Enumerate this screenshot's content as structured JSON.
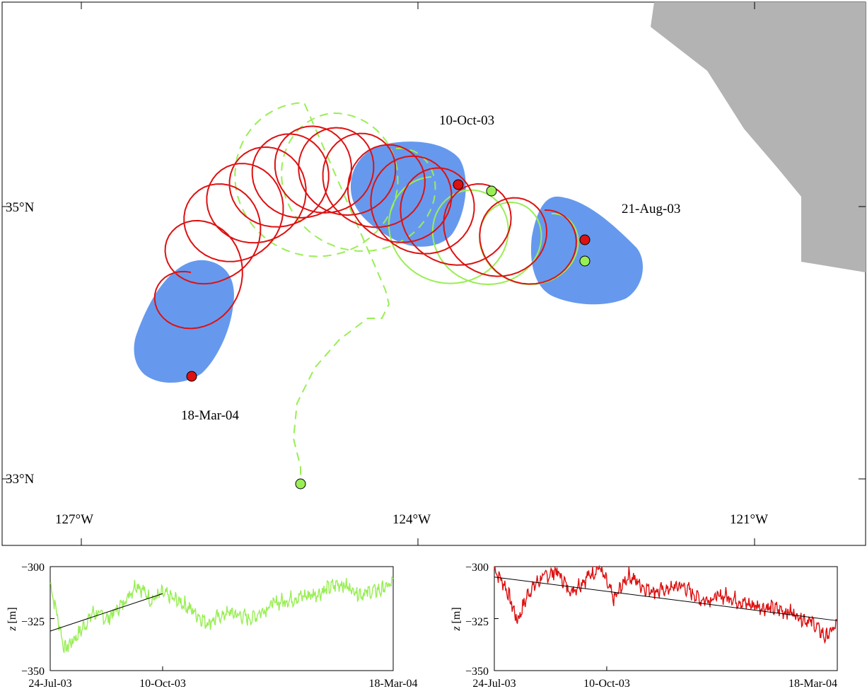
{
  "map": {
    "lat_labels": [
      "35°N",
      "33°N"
    ],
    "lon_labels": [
      "127°W",
      "124°W",
      "121°W"
    ],
    "date_labels": [
      "10-Oct-03",
      "21-Aug-03",
      "18-Mar-04"
    ],
    "land_color": "#b3b3b3",
    "eddy_color": "#6699ee",
    "red_track_color": "#dd1111",
    "green_track_color": "#99ee55"
  },
  "chart_data": [
    {
      "type": "line",
      "title": "",
      "xlabel": "",
      "ylabel": "z [m]",
      "ylabel_var": "z",
      "ylabel_unit": "[m]",
      "ylim": [
        -350,
        -300
      ],
      "yticks": [
        "−300",
        "−325",
        "−350"
      ],
      "xticks": [
        "24-Jul-03",
        "10-Oct-03",
        "18-Mar-04"
      ],
      "series": [
        {
          "color": "#99ee55",
          "x": [
            "24-Jul-03",
            "03-Aug-03",
            "13-Aug-03",
            "23-Aug-03",
            "02-Sep-03",
            "12-Sep-03",
            "22-Sep-03",
            "02-Oct-03",
            "10-Oct-03",
            "25-Oct-03",
            "10-Nov-03",
            "25-Nov-03",
            "10-Dec-03",
            "25-Dec-03",
            "10-Jan-04",
            "25-Jan-04",
            "10-Feb-04",
            "25-Feb-04",
            "10-Mar-04",
            "18-Mar-04"
          ],
          "values": [
            -308,
            -340,
            -332,
            -322,
            -325,
            -318,
            -308,
            -316,
            -313,
            -318,
            -327,
            -322,
            -325,
            -318,
            -315,
            -313,
            -308,
            -313,
            -311,
            -308
          ]
        }
      ],
      "trend": {
        "x": [
          "24-Jul-03",
          "10-Oct-03"
        ],
        "values": [
          -331,
          -313
        ]
      }
    },
    {
      "type": "line",
      "title": "",
      "xlabel": "",
      "ylabel": "z [m]",
      "ylabel_var": "z",
      "ylabel_unit": "[m]",
      "ylim": [
        -350,
        -300
      ],
      "yticks": [
        "−300",
        "−325",
        "−350"
      ],
      "xticks": [
        "24-Jul-03",
        "10-Oct-03",
        "18-Mar-04"
      ],
      "series": [
        {
          "color": "#dd1111",
          "x": [
            "24-Jul-03",
            "01-Aug-03",
            "09-Aug-03",
            "17-Aug-03",
            "25-Aug-03",
            "05-Sep-03",
            "15-Sep-03",
            "25-Sep-03",
            "05-Oct-03",
            "15-Oct-03",
            "25-Oct-03",
            "05-Nov-03",
            "15-Nov-03",
            "01-Dec-03",
            "15-Dec-03",
            "01-Jan-04",
            "15-Jan-04",
            "01-Feb-04",
            "15-Feb-04",
            "01-Mar-04",
            "10-Mar-04",
            "18-Mar-04"
          ],
          "values": [
            -301,
            -310,
            -326,
            -312,
            -306,
            -302,
            -312,
            -306,
            -300,
            -316,
            -304,
            -310,
            -312,
            -309,
            -316,
            -314,
            -318,
            -320,
            -322,
            -327,
            -334,
            -328
          ]
        }
      ],
      "trend": {
        "x": [
          "24-Jul-03",
          "18-Mar-04"
        ],
        "values": [
          -305,
          -326
        ]
      }
    }
  ]
}
